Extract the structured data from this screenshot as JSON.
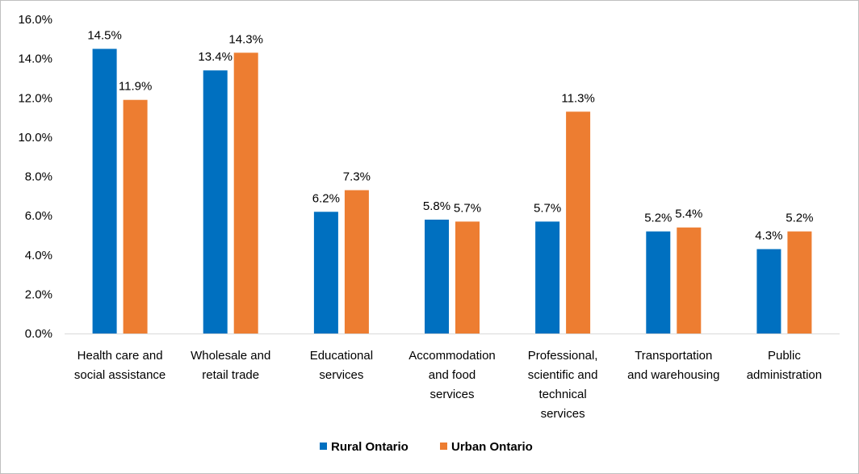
{
  "chart_data": {
    "type": "bar",
    "title": "",
    "xlabel": "",
    "ylabel": "",
    "ylim": [
      0,
      16
    ],
    "y_ticks": [
      "0.0%",
      "2.0%",
      "4.0%",
      "6.0%",
      "8.0%",
      "10.0%",
      "12.0%",
      "14.0%",
      "16.0%"
    ],
    "categories": [
      [
        "Health care and",
        "social assistance"
      ],
      [
        "Wholesale and",
        "retail trade"
      ],
      [
        "Educational",
        "services"
      ],
      [
        "Accommodation",
        "and food",
        "services"
      ],
      [
        "Professional,",
        "scientific and",
        "technical",
        "services"
      ],
      [
        "Transportation",
        "and warehousing"
      ],
      [
        "Public",
        "administration"
      ]
    ],
    "series": [
      {
        "name": "Rural Ontario",
        "color": "#0070C0",
        "values": [
          14.5,
          13.4,
          6.2,
          5.8,
          5.7,
          5.2,
          4.3
        ],
        "labels": [
          "14.5%",
          "13.4%",
          "6.2%",
          "5.8%",
          "5.7%",
          "5.2%",
          "4.3%"
        ]
      },
      {
        "name": "Urban Ontario",
        "color": "#ED7D31",
        "values": [
          11.9,
          14.3,
          7.3,
          5.7,
          11.3,
          5.4,
          5.2
        ],
        "labels": [
          "11.9%",
          "14.3%",
          "7.3%",
          "5.7%",
          "11.3%",
          "5.4%",
          "5.2%"
        ]
      }
    ],
    "grid": false,
    "legend_position": "bottom"
  }
}
